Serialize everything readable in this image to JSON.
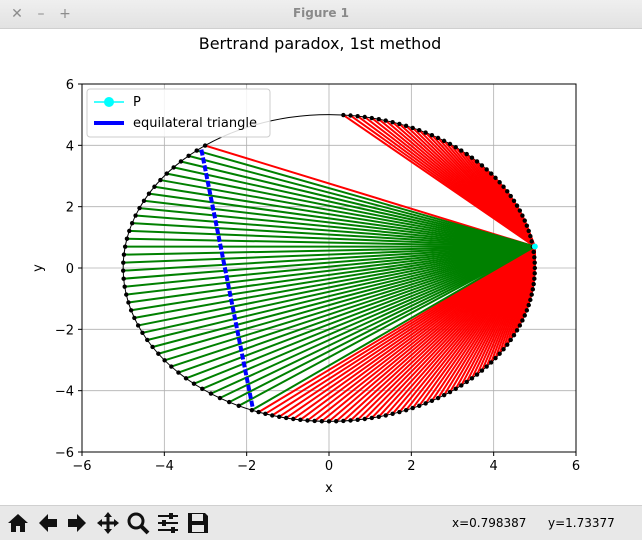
{
  "window": {
    "title": "Figure 1",
    "close_glyph": "✕",
    "minimize_glyph": "–",
    "maximize_glyph": "+"
  },
  "toolbar": {
    "buttons": [
      "home-icon",
      "back-icon",
      "forward-icon",
      "pan-icon",
      "zoom-icon",
      "configure-subplots-icon",
      "save-icon"
    ],
    "x_readout": "x=0.798387",
    "y_readout": "y=1.73377"
  },
  "chart_data": {
    "type": "line",
    "title": "Bertrand paradox, 1st method",
    "xlabel": "x",
    "ylabel": "y",
    "xlim": [
      -6,
      6
    ],
    "ylim": [
      -6,
      6
    ],
    "xticks": [
      "−6",
      "−4",
      "−2",
      "0",
      "2",
      "4",
      "6"
    ],
    "yticks": [
      "−6",
      "−4",
      "−2",
      "0",
      "2",
      "4",
      "6"
    ],
    "grid": true,
    "legend_position": "top-left",
    "legend": [
      {
        "name": "P",
        "color": "#00ffff",
        "marker": "circle"
      },
      {
        "name": "equilateral triangle",
        "color": "#0000ff",
        "marker": "none"
      }
    ],
    "circle": {
      "center": [
        0,
        0
      ],
      "radius": 5
    },
    "point_P": [
      5.0,
      0.7
    ],
    "triangle_opposite_side": [
      [
        -3.1,
        3.86
      ],
      [
        -1.85,
        -4.58
      ]
    ],
    "chords": {
      "origin": [
        5.0,
        0.7
      ],
      "long_color": "#008000",
      "short_color": "#ff0000",
      "endpoint_angles_deg": [
        86,
        84,
        82,
        80,
        78,
        76,
        74,
        72,
        70,
        68,
        66,
        64,
        62,
        60,
        58,
        56,
        54,
        52,
        50,
        48,
        46,
        44,
        42,
        40,
        38,
        36,
        34,
        32,
        30,
        28,
        26,
        24,
        22,
        20,
        18,
        16,
        14,
        12,
        10,
        8,
        6,
        4,
        2,
        0,
        -2,
        -4,
        -6,
        -8,
        -10,
        -12,
        -14,
        -16,
        -18,
        -20,
        -22,
        -24,
        -26,
        -28,
        -30,
        -32,
        -34,
        -36,
        -38,
        -40,
        -42,
        -44,
        -46,
        -48,
        -50,
        -52,
        -54,
        -56,
        -58,
        -60,
        -62,
        -64,
        -66,
        -68,
        -70,
        -72,
        -74,
        -76,
        -78,
        -80,
        -82,
        -84,
        -86,
        -88,
        -90,
        -92,
        -94,
        -96,
        -98,
        -100,
        -102,
        -104,
        -106,
        -108,
        -110,
        -112,
        127,
        130,
        133,
        136,
        139,
        142,
        145,
        148,
        151,
        154,
        157,
        160,
        163,
        166,
        169,
        172,
        175,
        178,
        181,
        184,
        187,
        190,
        193,
        196,
        199,
        202,
        205,
        208,
        211,
        214,
        217,
        220,
        223,
        226,
        229,
        232,
        235,
        238,
        241,
        244
      ]
    }
  }
}
